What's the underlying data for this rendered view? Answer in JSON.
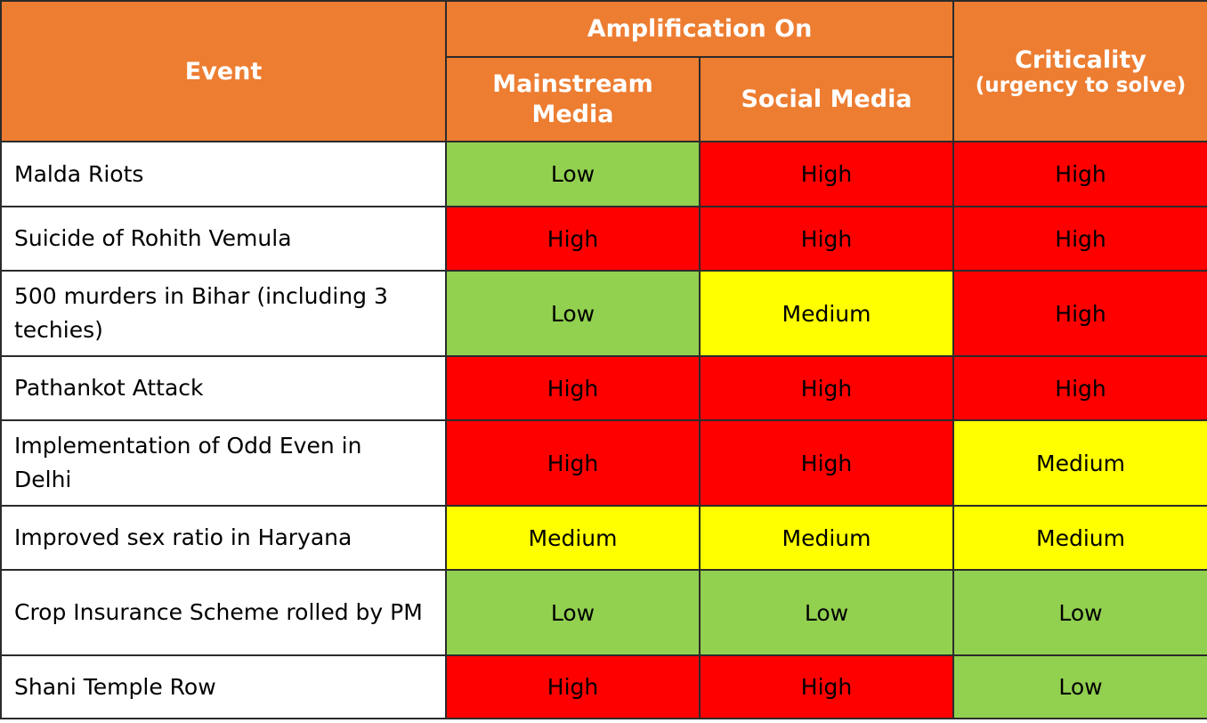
{
  "header": {
    "event": "Event",
    "group": "Amplification On",
    "columns": [
      "Mainstream Media",
      "Social Media"
    ],
    "criticality": "Criticality",
    "criticality_note": "(urgency to solve)"
  },
  "level_colors": {
    "High": "#ff0000",
    "Medium": "#ffff00",
    "Low": "#92d050"
  },
  "table": {
    "rows": [
      [
        "Malda Riots",
        "Low",
        "High",
        "High"
      ],
      [
        "Suicide of Rohith Vemula",
        "High",
        "High",
        "High"
      ],
      [
        "500 murders in Bihar (including 3 techies)",
        "Low",
        "Medium",
        "High"
      ],
      [
        "Pathankot Attack",
        "High",
        "High",
        "High"
      ],
      [
        "Implementation of Odd Even in Delhi",
        "High",
        "High",
        "Medium"
      ],
      [
        "Improved sex ratio in Haryana",
        "Medium",
        "Medium",
        "Medium"
      ],
      [
        "Crop Insurance Scheme rolled by PM",
        "Low",
        "Low",
        "Low"
      ],
      [
        "Shani Temple Row",
        "High",
        "High",
        "Low"
      ]
    ]
  }
}
